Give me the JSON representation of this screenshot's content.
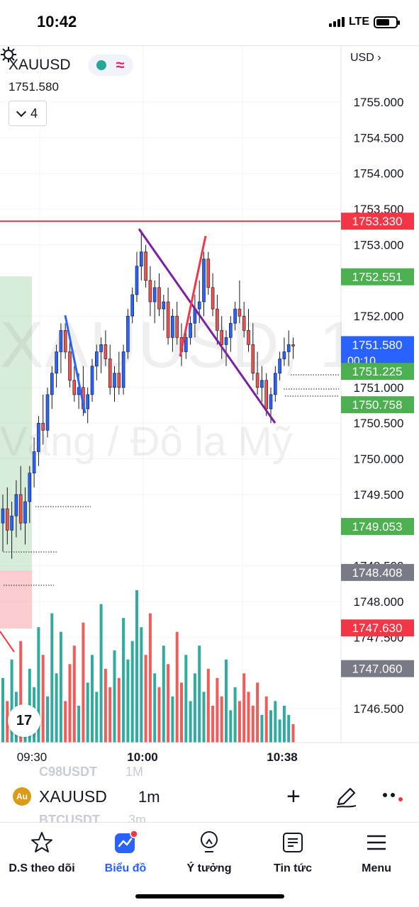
{
  "status_bar": {
    "time": "10:42",
    "network": "LTE"
  },
  "chart": {
    "symbol": "XAUUSD",
    "last_price": "1751.580",
    "indicator_count": "4",
    "currency": "USD",
    "watermark_symbol": "XAUUSD, 1",
    "watermark_desc": "Vàng / Đô la Mỹ",
    "colors": {
      "up": "#26a69a",
      "down": "#ef5350",
      "line_red": "#f23645",
      "line_purple": "#7b1fa2",
      "line_blue": "#2962ff"
    },
    "price_axis_labels": [
      "1755.000",
      "1754.500",
      "1754.000",
      "1753.500",
      "1753.000",
      "1752.000",
      "1751.000",
      "1750.500",
      "1750.000",
      "1749.500",
      "1748.500",
      "1748.000",
      "1747.500",
      "1746.500"
    ],
    "price_badges": [
      {
        "value": "1753.330",
        "color": "#f23645"
      },
      {
        "value": "1752.551",
        "color": "#4caf50"
      },
      {
        "value": "1751.580",
        "sub": "00:10",
        "color": "#2962ff"
      },
      {
        "value": "1751.225",
        "color": "#4caf50"
      },
      {
        "value": "1750.758",
        "color": "#4caf50"
      },
      {
        "value": "1749.053",
        "color": "#4caf50"
      },
      {
        "value": "1748.408",
        "color": "#787b86"
      },
      {
        "value": "1747.630",
        "color": "#f23645"
      },
      {
        "value": "1747.060",
        "color": "#787b86"
      }
    ],
    "time_labels": [
      "09:30",
      "10:00",
      "10:38"
    ]
  },
  "chart_data": {
    "type": "candlestick",
    "title": "XAUUSD, 1",
    "subtitle": "Vàng / Đô la Mỹ",
    "x_ticks": [
      "09:30",
      "10:00",
      "10:38"
    ],
    "y_ticks": [
      1755.0,
      1754.5,
      1754.0,
      1753.5,
      1753.0,
      1752.0,
      1751.0,
      1750.5,
      1750.0,
      1749.5,
      1748.5,
      1748.0,
      1747.5,
      1746.5
    ],
    "ylim": [
      1746.2,
      1755.8
    ],
    "candles": [
      {
        "o": 1749.1,
        "h": 1749.5,
        "l": 1748.7,
        "c": 1749.3
      },
      {
        "o": 1749.3,
        "h": 1749.6,
        "l": 1748.8,
        "c": 1749.0
      },
      {
        "o": 1749.0,
        "h": 1749.4,
        "l": 1748.6,
        "c": 1749.2
      },
      {
        "o": 1749.2,
        "h": 1749.7,
        "l": 1748.9,
        "c": 1749.5
      },
      {
        "o": 1749.5,
        "h": 1749.9,
        "l": 1749.0,
        "c": 1749.1
      },
      {
        "o": 1749.1,
        "h": 1749.6,
        "l": 1748.8,
        "c": 1749.4
      },
      {
        "o": 1749.4,
        "h": 1749.9,
        "l": 1749.1,
        "c": 1749.8
      },
      {
        "o": 1749.8,
        "h": 1750.3,
        "l": 1749.6,
        "c": 1750.1
      },
      {
        "o": 1750.1,
        "h": 1750.6,
        "l": 1749.9,
        "c": 1750.5
      },
      {
        "o": 1750.5,
        "h": 1750.9,
        "l": 1750.2,
        "c": 1750.4
      },
      {
        "o": 1750.4,
        "h": 1751.0,
        "l": 1750.3,
        "c": 1750.9
      },
      {
        "o": 1750.9,
        "h": 1751.3,
        "l": 1750.7,
        "c": 1751.2
      },
      {
        "o": 1751.2,
        "h": 1751.6,
        "l": 1751.0,
        "c": 1751.5
      },
      {
        "o": 1751.5,
        "h": 1751.9,
        "l": 1751.2,
        "c": 1751.8
      },
      {
        "o": 1751.8,
        "h": 1751.9,
        "l": 1751.4,
        "c": 1751.5
      },
      {
        "o": 1751.5,
        "h": 1751.7,
        "l": 1751.0,
        "c": 1751.1
      },
      {
        "o": 1751.1,
        "h": 1751.3,
        "l": 1750.8,
        "c": 1750.9
      },
      {
        "o": 1750.9,
        "h": 1751.2,
        "l": 1750.7,
        "c": 1751.0
      },
      {
        "o": 1751.0,
        "h": 1751.3,
        "l": 1750.6,
        "c": 1750.7
      },
      {
        "o": 1750.7,
        "h": 1751.0,
        "l": 1750.5,
        "c": 1750.9
      },
      {
        "o": 1750.9,
        "h": 1751.4,
        "l": 1750.8,
        "c": 1751.3
      },
      {
        "o": 1751.3,
        "h": 1751.6,
        "l": 1751.1,
        "c": 1751.5
      },
      {
        "o": 1751.5,
        "h": 1751.7,
        "l": 1751.2,
        "c": 1751.6
      },
      {
        "o": 1751.6,
        "h": 1751.8,
        "l": 1751.3,
        "c": 1751.4
      },
      {
        "o": 1751.4,
        "h": 1751.6,
        "l": 1750.9,
        "c": 1751.0
      },
      {
        "o": 1751.0,
        "h": 1751.3,
        "l": 1750.8,
        "c": 1751.2
      },
      {
        "o": 1751.2,
        "h": 1751.5,
        "l": 1750.9,
        "c": 1751.0
      },
      {
        "o": 1751.0,
        "h": 1751.6,
        "l": 1750.9,
        "c": 1751.5
      },
      {
        "o": 1751.5,
        "h": 1752.1,
        "l": 1751.4,
        "c": 1752.0
      },
      {
        "o": 1752.0,
        "h": 1752.4,
        "l": 1751.9,
        "c": 1752.3
      },
      {
        "o": 1752.3,
        "h": 1752.9,
        "l": 1752.2,
        "c": 1752.7
      },
      {
        "o": 1752.7,
        "h": 1753.2,
        "l": 1752.5,
        "c": 1752.9
      },
      {
        "o": 1752.9,
        "h": 1753.0,
        "l": 1752.4,
        "c": 1752.5
      },
      {
        "o": 1752.5,
        "h": 1752.7,
        "l": 1752.0,
        "c": 1752.2
      },
      {
        "o": 1752.2,
        "h": 1752.5,
        "l": 1751.9,
        "c": 1752.4
      },
      {
        "o": 1752.4,
        "h": 1752.6,
        "l": 1752.0,
        "c": 1752.1
      },
      {
        "o": 1752.1,
        "h": 1752.3,
        "l": 1751.8,
        "c": 1752.2
      },
      {
        "o": 1752.2,
        "h": 1752.4,
        "l": 1751.6,
        "c": 1751.7
      },
      {
        "o": 1751.7,
        "h": 1752.1,
        "l": 1751.5,
        "c": 1752.0
      },
      {
        "o": 1752.0,
        "h": 1752.2,
        "l": 1751.6,
        "c": 1751.7
      },
      {
        "o": 1751.7,
        "h": 1751.9,
        "l": 1751.3,
        "c": 1751.5
      },
      {
        "o": 1751.5,
        "h": 1751.8,
        "l": 1751.4,
        "c": 1751.7
      },
      {
        "o": 1751.7,
        "h": 1752.0,
        "l": 1751.6,
        "c": 1751.9
      },
      {
        "o": 1751.9,
        "h": 1752.3,
        "l": 1751.7,
        "c": 1752.1
      },
      {
        "o": 1752.1,
        "h": 1752.5,
        "l": 1751.9,
        "c": 1752.2
      },
      {
        "o": 1752.2,
        "h": 1752.9,
        "l": 1752.0,
        "c": 1752.8
      },
      {
        "o": 1752.8,
        "h": 1752.9,
        "l": 1752.3,
        "c": 1752.4
      },
      {
        "o": 1752.4,
        "h": 1752.6,
        "l": 1752.0,
        "c": 1752.1
      },
      {
        "o": 1752.1,
        "h": 1752.3,
        "l": 1751.6,
        "c": 1751.8
      },
      {
        "o": 1751.8,
        "h": 1752.0,
        "l": 1751.4,
        "c": 1751.6
      },
      {
        "o": 1751.6,
        "h": 1751.8,
        "l": 1751.3,
        "c": 1751.7
      },
      {
        "o": 1751.7,
        "h": 1752.0,
        "l": 1751.5,
        "c": 1751.9
      },
      {
        "o": 1751.9,
        "h": 1752.2,
        "l": 1751.8,
        "c": 1752.1
      },
      {
        "o": 1752.1,
        "h": 1752.5,
        "l": 1751.9,
        "c": 1752.0
      },
      {
        "o": 1752.0,
        "h": 1752.2,
        "l": 1751.7,
        "c": 1751.8
      },
      {
        "o": 1751.8,
        "h": 1752.1,
        "l": 1751.5,
        "c": 1751.6
      },
      {
        "o": 1751.6,
        "h": 1751.9,
        "l": 1751.1,
        "c": 1751.2
      },
      {
        "o": 1751.2,
        "h": 1751.5,
        "l": 1750.9,
        "c": 1751.0
      },
      {
        "o": 1751.0,
        "h": 1751.3,
        "l": 1750.8,
        "c": 1751.1
      },
      {
        "o": 1751.1,
        "h": 1751.2,
        "l": 1750.6,
        "c": 1750.7
      },
      {
        "o": 1750.7,
        "h": 1751.0,
        "l": 1750.5,
        "c": 1750.9
      },
      {
        "o": 1750.9,
        "h": 1751.3,
        "l": 1750.8,
        "c": 1751.2
      },
      {
        "o": 1751.2,
        "h": 1751.5,
        "l": 1751.1,
        "c": 1751.4
      },
      {
        "o": 1751.4,
        "h": 1751.7,
        "l": 1751.3,
        "c": 1751.5
      },
      {
        "o": 1751.5,
        "h": 1751.8,
        "l": 1751.3,
        "c": 1751.6
      },
      {
        "o": 1751.6,
        "h": 1751.7,
        "l": 1751.4,
        "c": 1751.58
      }
    ],
    "volumes": [
      14,
      9,
      18,
      11,
      22,
      7,
      16,
      12,
      25,
      19,
      10,
      28,
      15,
      24,
      9,
      17,
      21,
      8,
      26,
      13,
      19,
      11,
      30,
      16,
      12,
      20,
      14,
      27,
      18,
      22,
      33,
      25,
      19,
      28,
      15,
      12,
      21,
      17,
      10,
      24,
      13,
      19,
      9,
      15,
      21,
      11,
      16,
      8,
      14,
      10,
      18,
      7,
      12,
      9,
      15,
      11,
      8,
      13,
      6,
      10,
      7,
      9,
      5,
      8,
      6,
      4
    ],
    "horizontal_lines": [
      {
        "price": 1753.33,
        "color": "#f23645"
      }
    ]
  },
  "toolbar": {
    "symbol": "XAUUSD",
    "interval": "1m",
    "ghost_top": "C98USDT",
    "ghost_top_interval": "1M",
    "ghost_bottom": "BTCUSDT",
    "ghost_bottom_interval": "3m"
  },
  "nav": {
    "items": [
      {
        "label": "D.S theo dõi",
        "icon": "star-icon"
      },
      {
        "label": "Biểu đồ",
        "icon": "chart-icon",
        "active": true
      },
      {
        "label": "Ý tưởng",
        "icon": "lightbulb-icon"
      },
      {
        "label": "Tin tức",
        "icon": "news-icon"
      },
      {
        "label": "Menu",
        "icon": "menu-icon"
      }
    ]
  }
}
